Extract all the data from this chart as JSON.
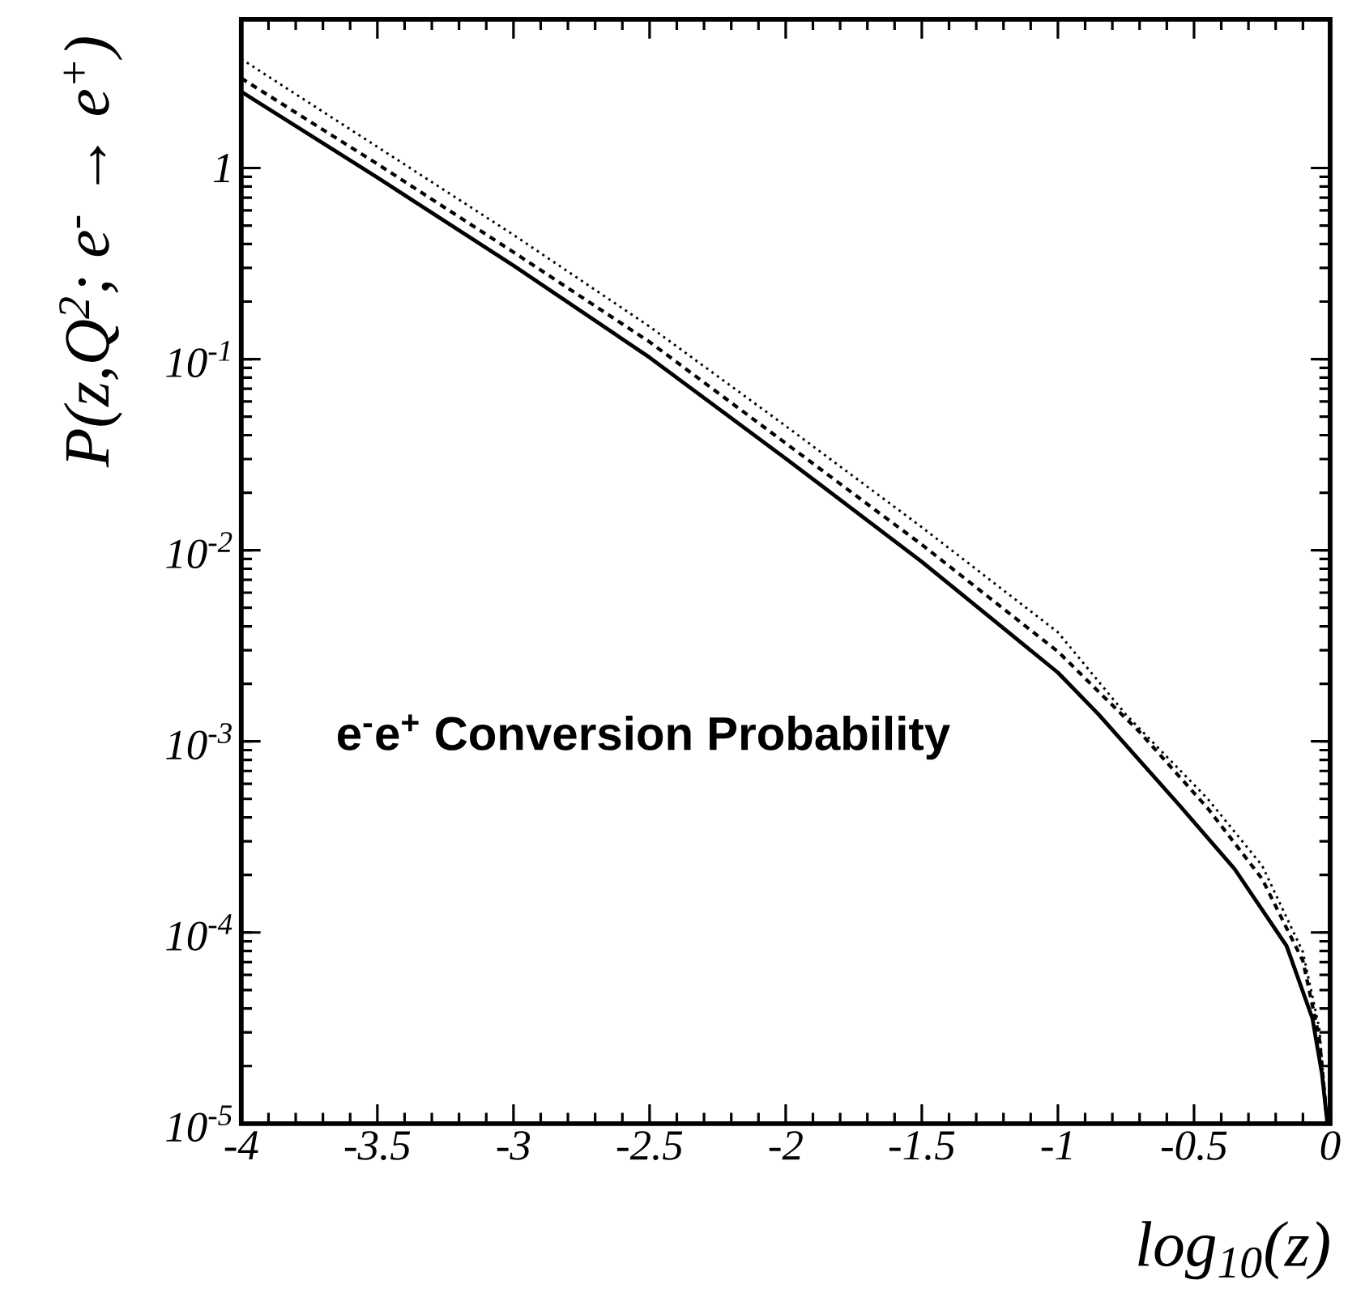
{
  "chart_data": {
    "type": "line",
    "xlabel": "log$_{10}$(z)",
    "ylabel": "P(z,Q$^{2}$; e$^{-}$ → e$^{+}$)",
    "annotations": [
      "e$^{-}$e$^{+}$ Conversion Probability"
    ],
    "log": "y",
    "grid": false,
    "marker": "none",
    "xlim": [
      -4,
      0
    ],
    "ylim": [
      1e-05,
      6
    ],
    "xticks": [
      -4,
      -3.5,
      -3,
      -2.5,
      -2,
      -1.5,
      -1,
      -0.5,
      0
    ],
    "yticks": [
      {
        "value": 1e-05,
        "label": "10$^{-5}$"
      },
      {
        "value": 0.0001,
        "label": "10$^{-4}$"
      },
      {
        "value": 0.001,
        "label": "10$^{-3}$"
      },
      {
        "value": 0.01,
        "label": "10$^{-2}$"
      },
      {
        "value": 0.1,
        "label": "10$^{-1}$"
      },
      {
        "value": 1,
        "label": "1"
      }
    ],
    "series": [
      {
        "color": "#000000",
        "line_style": "solid",
        "x": [
          -4,
          -3.5,
          -3,
          -2.5,
          -2,
          -1.5,
          -1,
          -0.85,
          -0.55,
          -0.35,
          -0.16,
          -0.065,
          -0.03,
          -0.01
        ],
        "values": [
          2.51,
          0.891,
          0.309,
          0.102,
          0.0302,
          0.00871,
          0.00229,
          0.00138,
          0.000457,
          0.000214,
          8.5e-05,
          3.55e-05,
          1.82e-05,
          1e-05
        ]
      },
      {
        "color": "#000000",
        "line_style": "dashed",
        "x": [
          -4,
          -3.5,
          -3,
          -2.5,
          -2,
          -1.5,
          -1,
          -0.7,
          -0.45,
          -0.25,
          -0.1,
          -0.04,
          -0.01
        ],
        "values": [
          2.95,
          1.05,
          0.363,
          0.123,
          0.0363,
          0.0107,
          0.00295,
          0.00112,
          0.000447,
          0.000191,
          7.1e-05,
          2.82e-05,
          1e-05
        ]
      },
      {
        "color": "#000000",
        "line_style": "dotted",
        "x": [
          -4,
          -3.5,
          -3,
          -2.5,
          -2,
          -1.5,
          -1,
          -0.75,
          -0.45,
          -0.25,
          -0.1,
          -0.04,
          -0.01
        ],
        "values": [
          3.72,
          1.29,
          0.447,
          0.148,
          0.0447,
          0.0132,
          0.00372,
          0.00138,
          0.000501,
          0.000224,
          7.9e-05,
          3.16e-05,
          1e-05
        ]
      }
    ]
  }
}
